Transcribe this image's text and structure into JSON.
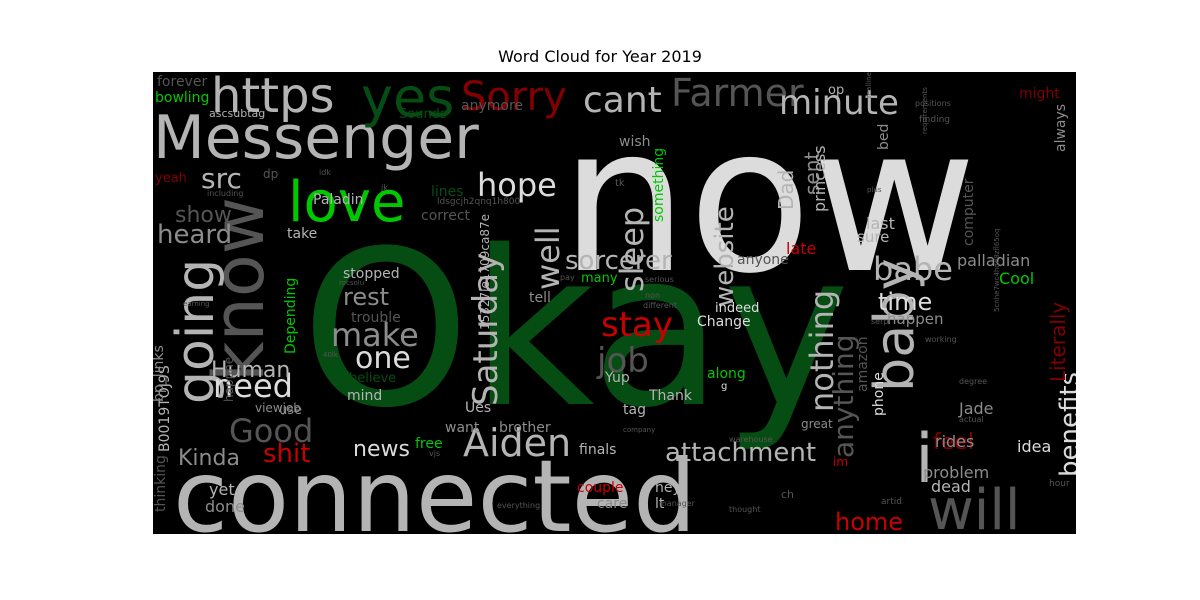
{
  "chart_data": {
    "type": "wordcloud",
    "title": "Word Cloud for Year 2019",
    "colors": {
      "background": "#000000",
      "white": "#dcdcdc",
      "light_gray": "#b4b4b4",
      "mid_gray": "#8c8c8c",
      "dark_gray": "#555555",
      "green": "#00c800",
      "dark_green": "#064d13",
      "red": "#c80000",
      "dark_red": "#820000"
    },
    "words": [
      {
        "text": "Okay"
      },
      {
        "text": "now"
      },
      {
        "text": "connected"
      },
      {
        "text": "Messenger"
      },
      {
        "text": "know"
      },
      {
        "text": "https"
      },
      {
        "text": "yes"
      },
      {
        "text": "love"
      },
      {
        "text": "going"
      },
      {
        "text": "Sorry"
      },
      {
        "text": "Farmer"
      },
      {
        "text": "cant"
      },
      {
        "text": "minute"
      },
      {
        "text": "i"
      },
      {
        "text": "baby"
      },
      {
        "text": "will"
      },
      {
        "text": "src"
      },
      {
        "text": "hope"
      },
      {
        "text": "sleep"
      },
      {
        "text": "website"
      },
      {
        "text": "Aiden"
      },
      {
        "text": "Saturday"
      },
      {
        "text": "well"
      },
      {
        "text": "sorcerer"
      },
      {
        "text": "babe"
      },
      {
        "text": "benefits"
      },
      {
        "text": "Literally"
      },
      {
        "text": "nothing"
      },
      {
        "text": "stay"
      },
      {
        "text": "job"
      },
      {
        "text": "make"
      },
      {
        "text": "one"
      },
      {
        "text": "need"
      },
      {
        "text": "Good"
      },
      {
        "text": "heard"
      },
      {
        "text": "show"
      },
      {
        "text": "rest"
      },
      {
        "text": "Human"
      },
      {
        "text": "shit"
      },
      {
        "text": "Kinda"
      },
      {
        "text": "news"
      },
      {
        "text": "attachment"
      },
      {
        "text": "anything"
      },
      {
        "text": "home"
      },
      {
        "text": "feel"
      },
      {
        "text": "time"
      },
      {
        "text": "Dad"
      },
      {
        "text": "sent"
      },
      {
        "text": "princess"
      },
      {
        "text": "late"
      },
      {
        "text": "last"
      },
      {
        "text": "sure"
      },
      {
        "text": "bed"
      },
      {
        "text": "computer"
      },
      {
        "text": "palladian"
      },
      {
        "text": "Cool"
      },
      {
        "text": "happen"
      },
      {
        "text": "rides"
      },
      {
        "text": "problem"
      },
      {
        "text": "dead"
      },
      {
        "text": "idea"
      },
      {
        "text": "Jade"
      },
      {
        "text": "always"
      },
      {
        "text": "might"
      },
      {
        "text": "forever"
      },
      {
        "text": "bowling"
      },
      {
        "text": "ascsubtag"
      },
      {
        "text": "Sounds"
      },
      {
        "text": "anymore"
      },
      {
        "text": "yeah"
      },
      {
        "text": "dp"
      },
      {
        "text": "Paladin"
      },
      {
        "text": "lines"
      },
      {
        "text": "correct"
      },
      {
        "text": "take"
      },
      {
        "text": "stopped"
      },
      {
        "text": "trouble"
      },
      {
        "text": "wish"
      },
      {
        "text": "something"
      },
      {
        "text": "op"
      },
      {
        "text": "B0019TOJ9S"
      },
      {
        "text": "bp_links"
      },
      {
        "text": "happne"
      },
      {
        "text": "Depending"
      },
      {
        "text": "believe"
      },
      {
        "text": "mind"
      },
      {
        "text": "thinking"
      },
      {
        "text": "yet"
      },
      {
        "text": "done"
      },
      {
        "text": "free"
      },
      {
        "text": "couple"
      },
      {
        "text": "care"
      },
      {
        "text": "hey"
      },
      {
        "text": "lt"
      },
      {
        "text": "finals"
      },
      {
        "text": "brother"
      },
      {
        "text": "want"
      },
      {
        "text": "Ues"
      },
      {
        "text": "tag"
      },
      {
        "text": "Yup"
      },
      {
        "text": "Thank"
      },
      {
        "text": "along"
      },
      {
        "text": "Change"
      },
      {
        "text": "indeed"
      },
      {
        "text": "many"
      },
      {
        "text": "tell"
      },
      {
        "text": "anyone"
      },
      {
        "text": "amazon"
      },
      {
        "text": "phone"
      },
      {
        "text": "great"
      },
      {
        "text": "im"
      },
      {
        "text": "use"
      },
      {
        "text": "viewjob"
      },
      {
        "text": "15327le1709ca87e"
      },
      {
        "text": "ldsgcjh2qnq1h800"
      },
      {
        "text": "tk"
      },
      {
        "text": "idk"
      },
      {
        "text": "jk"
      },
      {
        "text": "including"
      },
      {
        "text": "g"
      },
      {
        "text": "serious"
      },
      {
        "text": "non"
      },
      {
        "text": "different"
      },
      {
        "text": "pay"
      },
      {
        "text": "rocsolu"
      },
      {
        "text": "earning"
      },
      {
        "text": "40lk"
      },
      {
        "text": "everything"
      },
      {
        "text": "manager"
      },
      {
        "text": "thought"
      },
      {
        "text": "company"
      },
      {
        "text": "warehouse"
      },
      {
        "text": "ch"
      },
      {
        "text": "artid"
      },
      {
        "text": "hour"
      },
      {
        "text": "actual"
      },
      {
        "text": "degree"
      },
      {
        "text": "serp"
      },
      {
        "text": "working"
      },
      {
        "text": "positions"
      },
      {
        "text": "finding"
      },
      {
        "text": "requirements"
      },
      {
        "text": "plus"
      },
      {
        "text": "realline"
      },
      {
        "text": "vjs"
      },
      {
        "text": "5cnhe7wc4hgd8zfl65oq"
      }
    ]
  }
}
